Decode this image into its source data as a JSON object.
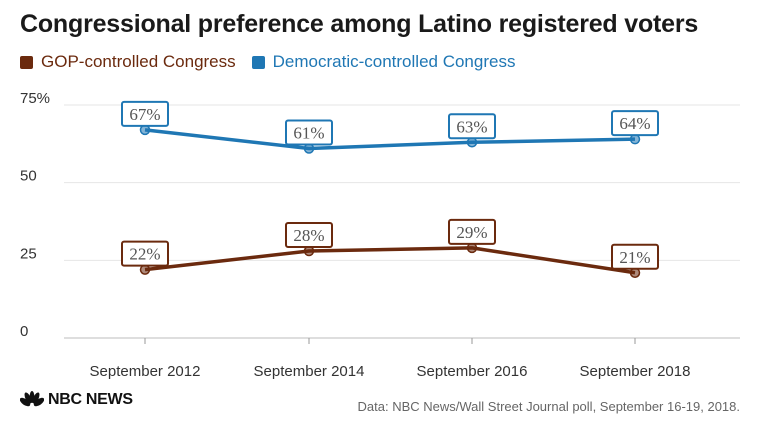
{
  "chart_data": {
    "type": "line",
    "title": "Congressional preference among Latino registered voters",
    "categories": [
      "September 2012",
      "September 2014",
      "September 2016",
      "September 2018"
    ],
    "series": [
      {
        "name": "GOP-controlled Congress",
        "color": "#6b2a0e",
        "values": [
          22,
          28,
          29,
          21
        ],
        "labels": [
          "22%",
          "28%",
          "29%",
          "21%"
        ]
      },
      {
        "name": "Democratic-controlled Congress",
        "color": "#1f77b4",
        "values": [
          67,
          61,
          63,
          64
        ],
        "labels": [
          "67%",
          "61%",
          "63%",
          "64%"
        ]
      }
    ],
    "yticks": [
      "0",
      "25",
      "50",
      "75%"
    ],
    "ytick_values": [
      0,
      25,
      50,
      75
    ],
    "ylim": [
      0,
      75
    ],
    "grid": true,
    "legend_placement": "top-left",
    "source": "Data: NBC News/Wall Street Journal poll, September 16-19, 2018.",
    "logo_text": "NBC NEWS"
  }
}
